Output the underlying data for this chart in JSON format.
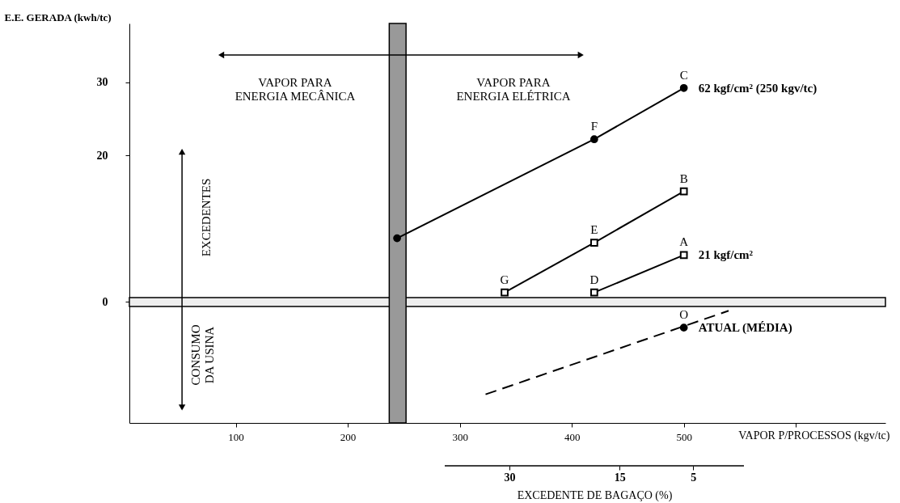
{
  "chart_data": {
    "type": "line",
    "xlabel": "VAPOR P/PROCESSOS (kgv/tc)",
    "ylabel": "E.E. GERADA (kwh/tc)",
    "x2label": "EXCEDENTE DE BAGAÇO (%)",
    "xlim": [
      5,
      680
    ],
    "xticks": [
      100,
      200,
      300,
      400,
      500,
      {
        "value": 600,
        "label": null
      }
    ],
    "ylim": [
      -16.5,
      38
    ],
    "yticks": [
      0,
      20,
      30
    ],
    "x2lim": [
      38.8,
      -1.9
    ],
    "x2ticks": [
      30,
      15,
      5
    ],
    "grid": false,
    "marker": "circle",
    "series": [
      {
        "color": "#000000",
        "x": [
          244,
          420,
          500
        ],
        "values": [
          8.7,
          22.2,
          29.2
        ]
      },
      {
        "color": "#000000",
        "marker": "square",
        "x": [
          340,
          420,
          500
        ],
        "values": [
          1.3,
          8.1,
          15.1
        ]
      },
      {
        "color": "#000000",
        "marker": "square",
        "x": [
          420,
          500
        ],
        "values": [
          1.3,
          6.4
        ]
      },
      {
        "color": "#000000",
        "line_style": "dashed",
        "marker": "none",
        "x": [
          323,
          540
        ],
        "values": [
          -12.6,
          -1.2
        ]
      },
      {
        "type": "scatter",
        "color": "#000000",
        "x": [
          500
        ],
        "values": [
          -3.5
        ]
      }
    ],
    "bands": [
      {
        "axis": "y",
        "from": -0.6,
        "to": 0.6,
        "color": "#eeeeee"
      },
      {
        "axis": "x",
        "from": 237,
        "to": 252,
        "color": "#999999"
      }
    ],
    "annotations": [
      "VAPOR PARA\nENERGIA MECÂNICA",
      "VAPOR PARA\nENERGIA ELÉTRICA",
      "EXCEDENTES",
      "CONSUMO\nDA USINA",
      {
        "text": "C",
        "x": 500,
        "y": 29.2
      },
      {
        "text": "F",
        "x": 420,
        "y": 22.2
      },
      {
        "text": "B",
        "x": 500,
        "y": 15.1
      },
      {
        "text": "E",
        "x": 420,
        "y": 8.1
      },
      {
        "text": "A",
        "x": 500,
        "y": 6.4
      },
      {
        "text": "G",
        "x": 340,
        "y": 1.3
      },
      {
        "text": "D",
        "x": 420,
        "y": 1.3
      },
      {
        "text": "O",
        "x": 500,
        "y": -3.5
      },
      {
        "text": "62 kgf/cm² (250 kgv/tc)",
        "x": 500,
        "y": 29.2
      },
      {
        "text": "21 kgf/cm²",
        "x": 500,
        "y": 6.4
      },
      {
        "text": "ATUAL (MÉDIA)",
        "x": 500,
        "y": -3.5
      }
    ]
  }
}
